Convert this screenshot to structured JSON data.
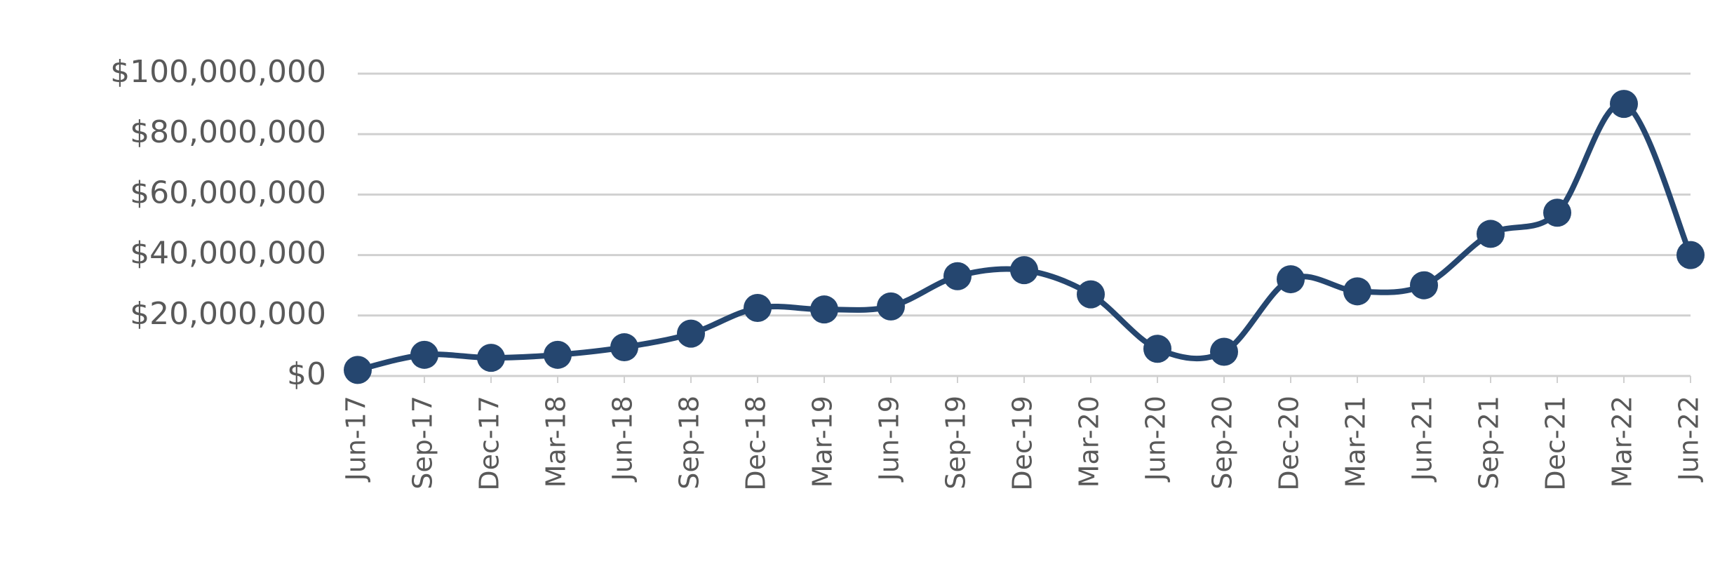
{
  "chart_data": {
    "type": "line",
    "categories": [
      "Jun-17",
      "Sep-17",
      "Dec-17",
      "Mar-18",
      "Jun-18",
      "Sep-18",
      "Dec-18",
      "Mar-19",
      "Jun-19",
      "Sep-19",
      "Dec-19",
      "Mar-20",
      "Jun-20",
      "Sep-20",
      "Dec-20",
      "Mar-21",
      "Jun-21",
      "Sep-21",
      "Dec-21",
      "Mar-22",
      "Jun-22"
    ],
    "series": [
      {
        "color": "#25466f",
        "values": [
          2000000,
          7000000,
          6000000,
          7000000,
          9500000,
          14000000,
          22500000,
          22000000,
          23000000,
          33000000,
          35000000,
          27000000,
          9000000,
          8000000,
          32000000,
          28000000,
          30000000,
          47000000,
          54000000,
          90000000,
          40000000
        ]
      }
    ],
    "ylim": [
      0,
      100000000
    ],
    "yticks": [
      {
        "value": 0,
        "label": "$0"
      },
      {
        "value": 20000000,
        "label": "$20,000,000"
      },
      {
        "value": 40000000,
        "label": "$40,000,000"
      },
      {
        "value": 60000000,
        "label": "$60,000,000"
      },
      {
        "value": 80000000,
        "label": "$80,000,000"
      },
      {
        "value": 100000000,
        "label": "$100,000,000"
      }
    ],
    "grid": true,
    "smooth": true,
    "markers": true
  }
}
